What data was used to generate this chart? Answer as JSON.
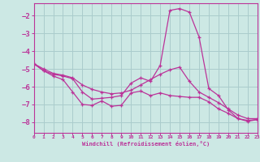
{
  "xlabel": "Windchill (Refroidissement éolien,°C)",
  "background_color": "#cce8e4",
  "grid_color": "#aacccc",
  "line_color": "#bb3399",
  "x_ticks": [
    0,
    1,
    2,
    3,
    4,
    5,
    6,
    7,
    8,
    9,
    10,
    11,
    12,
    13,
    14,
    15,
    16,
    17,
    18,
    19,
    20,
    21,
    22,
    23
  ],
  "ylim": [
    -8.6,
    -1.3
  ],
  "yticks": [
    -8,
    -7,
    -6,
    -5,
    -4,
    -3,
    -2
  ],
  "series": {
    "line1": [
      -4.7,
      -5.1,
      -5.3,
      -5.4,
      -5.55,
      -6.3,
      -6.7,
      -6.65,
      -6.6,
      -6.5,
      -5.8,
      -5.5,
      -5.7,
      -4.8,
      -1.7,
      -1.6,
      -1.8,
      -3.2,
      -6.1,
      -6.5,
      -7.3,
      -7.8,
      -7.9,
      -7.85
    ],
    "line2": [
      -4.7,
      -5.0,
      -5.25,
      -5.35,
      -5.5,
      -5.9,
      -6.15,
      -6.3,
      -6.4,
      -6.35,
      -6.2,
      -5.9,
      -5.6,
      -5.3,
      -5.05,
      -4.9,
      -5.7,
      -6.3,
      -6.6,
      -6.9,
      -7.25,
      -7.6,
      -7.8,
      -7.8
    ],
    "line3": [
      -4.7,
      -5.1,
      -5.4,
      -5.6,
      -6.3,
      -7.0,
      -7.05,
      -6.8,
      -7.1,
      -7.05,
      -6.35,
      -6.25,
      -6.5,
      -6.35,
      -6.5,
      -6.55,
      -6.6,
      -6.6,
      -6.85,
      -7.25,
      -7.5,
      -7.8,
      -7.95,
      -7.85
    ]
  }
}
